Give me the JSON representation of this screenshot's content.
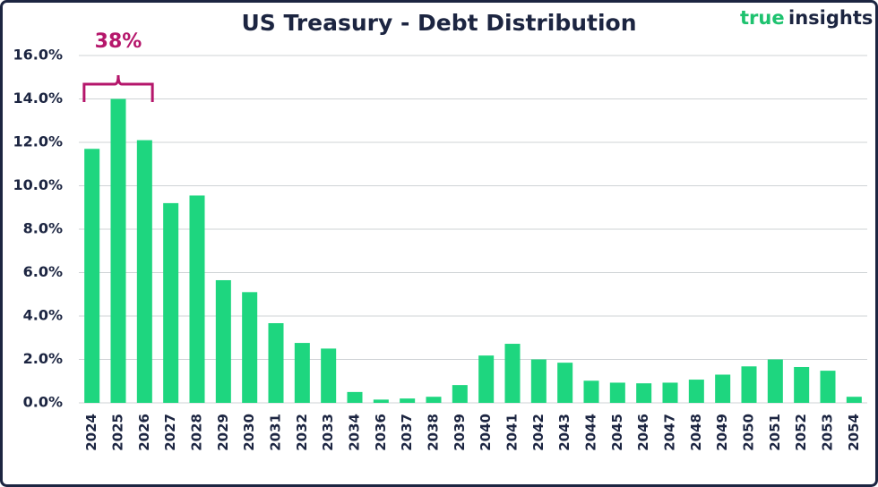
{
  "chart_data": {
    "type": "bar",
    "title": "US Treasury - Debt Distribution",
    "logo": {
      "first": "true",
      "second": "insights"
    },
    "annotation": "38%",
    "categories": [
      "2024",
      "2025",
      "2026",
      "2027",
      "2028",
      "2029",
      "2030",
      "2031",
      "2032",
      "2033",
      "2034",
      "2036",
      "2037",
      "2038",
      "2039",
      "2040",
      "2041",
      "2042",
      "2043",
      "2044",
      "2045",
      "2046",
      "2047",
      "2048",
      "2049",
      "2050",
      "2051",
      "2052",
      "2053",
      "2054"
    ],
    "values": [
      11.7,
      14.0,
      12.1,
      9.2,
      9.55,
      5.65,
      5.1,
      3.67,
      2.76,
      2.5,
      0.5,
      0.15,
      0.2,
      0.28,
      0.82,
      2.18,
      2.72,
      2.0,
      1.85,
      1.02,
      0.93,
      0.9,
      0.93,
      1.07,
      1.3,
      1.68,
      2.0,
      1.65,
      1.48,
      0.28
    ],
    "color": "#1ed67f",
    "ylim": [
      0,
      16
    ],
    "yticks": [
      {
        "value": 0,
        "label": "0.0%"
      },
      {
        "value": 2,
        "label": "2.0%"
      },
      {
        "value": 4,
        "label": "4.0%"
      },
      {
        "value": 6,
        "label": "6.0%"
      },
      {
        "value": 8,
        "label": "8.0%"
      },
      {
        "value": 10,
        "label": "10.0%"
      },
      {
        "value": 12,
        "label": "12.0%"
      },
      {
        "value": 14,
        "label": "14.0%"
      },
      {
        "value": 16,
        "label": "16.0%"
      }
    ],
    "grid": true
  }
}
